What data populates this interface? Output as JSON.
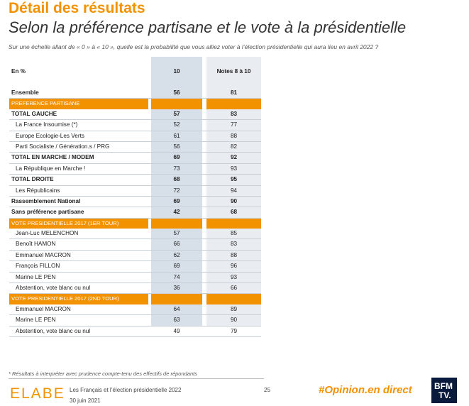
{
  "header": {
    "title": "Détail des résultats",
    "subtitle": "Selon la préférence partisane et le vote à la présidentielle",
    "question": "Sur une échelle allant de « 0 » à « 10 », quelle est la probabilité que vous alliez voter à l’élection présidentielle qui aura lieu en avril 2022 ?"
  },
  "table": {
    "col_label": "En %",
    "col1": "10",
    "col2": "Notes 8 à 10",
    "rows": [
      {
        "label": "Ensemble",
        "v1": "56",
        "v2": "81"
      },
      {
        "section": "PREFERENCE PARTISANE"
      },
      {
        "label": "TOTAL GAUCHE",
        "v1": "57",
        "v2": "83"
      },
      {
        "label": "La France Insoumise (*)",
        "v1": "52",
        "v2": "77"
      },
      {
        "label": "Europe Ecologie-Les Verts",
        "v1": "61",
        "v2": "88"
      },
      {
        "label": "Parti Socialiste / Génération.s / PRG",
        "v1": "56",
        "v2": "82"
      },
      {
        "label": "TOTAL EN MARCHE / MODEM",
        "v1": "69",
        "v2": "92"
      },
      {
        "label": "La République en Marche !",
        "v1": "73",
        "v2": "93"
      },
      {
        "label": "TOTAL DROITE",
        "v1": "68",
        "v2": "95"
      },
      {
        "label": "Les Républicains",
        "v1": "72",
        "v2": "94"
      },
      {
        "label": "Rassemblement National",
        "v1": "69",
        "v2": "90"
      },
      {
        "label": "Sans préférence partisane",
        "v1": "42",
        "v2": "68"
      },
      {
        "section": "VOTE PRESIDENTIELLE 2017 (1ER TOUR)"
      },
      {
        "label": "Jean-Luc MELENCHON",
        "v1": "57",
        "v2": "85"
      },
      {
        "label": "Benoît HAMON",
        "v1": "66",
        "v2": "83"
      },
      {
        "label": "Emmanuel MACRON",
        "v1": "62",
        "v2": "88"
      },
      {
        "label": "François FILLON",
        "v1": "69",
        "v2": "96"
      },
      {
        "label": "Marine LE PEN",
        "v1": "74",
        "v2": "93"
      },
      {
        "label": "Abstention, vote blanc ou nul",
        "v1": "36",
        "v2": "66"
      },
      {
        "section": "VOTE PRESIDENTIELLE 2017 (2ND TOUR)"
      },
      {
        "label": "Emmanuel MACRON",
        "v1": "64",
        "v2": "89"
      },
      {
        "label": "Marine LE PEN",
        "v1": "63",
        "v2": "90"
      },
      {
        "label": "Abstention, vote blanc ou nul",
        "v1": "49",
        "v2": "79"
      }
    ]
  },
  "footer": {
    "footnote": "* Résultats à interpréter avec prudence compte-tenu des effectifs de répondants",
    "logo": "ELABE",
    "study": "Les Français et l’élection présidentielle 2022",
    "date": "30 juin 2021",
    "page": "25",
    "hashtag": "#Opinion.en direct",
    "bfm_top": "BFM",
    "bfm_bottom": "TV."
  }
}
